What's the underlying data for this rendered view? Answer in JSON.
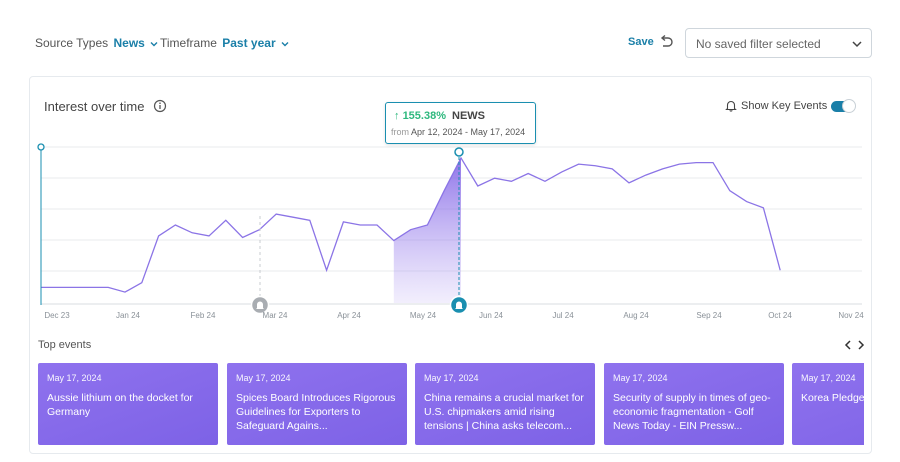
{
  "filters": {
    "source_label": "Source Types",
    "source_value": "News",
    "timeframe_label": "Timeframe",
    "timeframe_value": "Past year",
    "save_label": "Save",
    "saved_filter_value": "No saved filter selected"
  },
  "card": {
    "title": "Interest over time",
    "key_events_label": "Show Key Events",
    "key_events_on": true
  },
  "tooltip": {
    "arrow": "↑",
    "percent": "155.38%",
    "source": "NEWS",
    "from_label": "from",
    "range": "Apr 12, 2024 - May 17, 2024"
  },
  "chart_data": {
    "type": "area",
    "x_ticks": [
      "Dec 23",
      "Jan 24",
      "Feb 24",
      "Mar 24",
      "Apr 24",
      "May 24",
      "Jun 24",
      "Jul 24",
      "Aug 24",
      "Sep 24",
      "Oct 24",
      "Nov 24"
    ],
    "ylim": [
      0,
      100
    ],
    "grid": true,
    "series": [
      {
        "values": [
          10,
          10,
          10,
          10,
          10,
          7,
          13,
          43,
          50,
          45,
          43,
          53,
          42,
          47,
          57,
          55,
          53,
          21,
          52,
          50,
          50,
          40,
          47,
          50,
          72,
          93,
          75,
          80,
          78,
          83,
          78,
          84,
          89,
          88,
          86,
          77,
          82,
          86,
          89,
          90,
          90,
          72,
          65,
          61,
          21
        ],
        "highlight_range": [
          21,
          25
        ]
      }
    ],
    "key_event_markers": [
      "Mar 24",
      "May 24"
    ]
  },
  "top_events_label": "Top events",
  "events": [
    {
      "date": "May 17, 2024",
      "title": "Aussie lithium on the docket for Germany"
    },
    {
      "date": "May 17, 2024",
      "title": "Spices Board Introduces Rigorous Guidelines for Exporters to Safeguard Agains..."
    },
    {
      "date": "May 17, 2024",
      "title": "China remains a crucial market for U.S. chipmakers amid rising tensions | China asks telecom..."
    },
    {
      "date": "May 17, 2024",
      "title": "Security of supply in times of geo-economic fragmentation - Golf News Today - EIN Pressw..."
    },
    {
      "date": "May 17, 2024",
      "title": "Korea Pledge Package for Chain"
    }
  ]
}
